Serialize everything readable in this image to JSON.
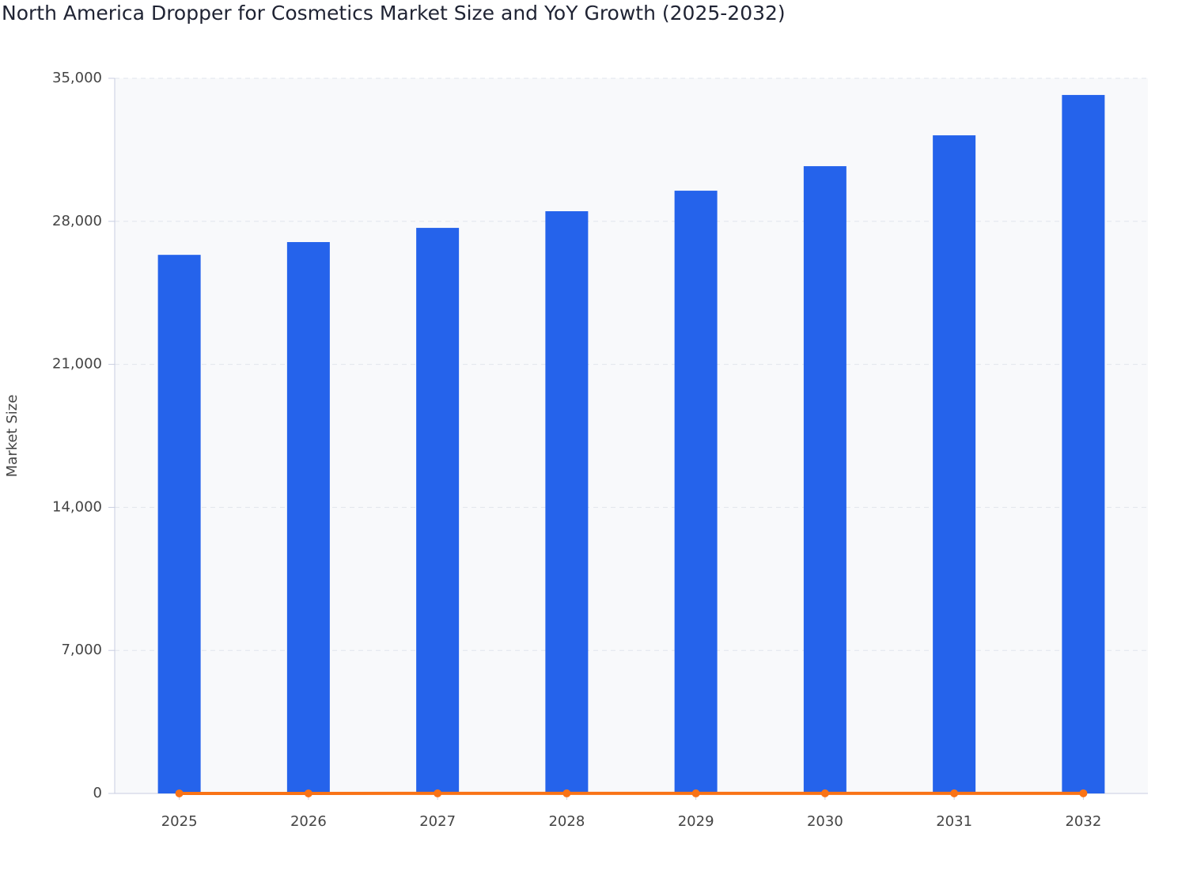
{
  "chart_data": {
    "type": "bar",
    "title": "North America Dropper for Cosmetics Market Size and YoY Growth (2025-2032)",
    "y_label": "Market Size",
    "categories": [
      "2025",
      "2026",
      "2027",
      "2028",
      "2029",
      "2030",
      "2031",
      "2032"
    ],
    "series": [
      {
        "type": "bar",
        "color": "#2563eb",
        "values": [
          26360,
          26985,
          27680,
          28495,
          29500,
          30700,
          32210,
          34185
        ]
      },
      {
        "type": "line",
        "color": "#f97316",
        "values": [
          2.2,
          2.4,
          2.6,
          2.9,
          3.5,
          4.1,
          4.9,
          6.1
        ]
      }
    ],
    "ylim": [
      0,
      35000
    ],
    "yticks": [
      0,
      {
        "value": 7000,
        "label": "7,000"
      },
      {
        "value": 14000,
        "label": "14,000"
      },
      {
        "value": 21000,
        "label": "21,000"
      },
      {
        "value": 28000,
        "label": "28,000"
      },
      {
        "value": 35000,
        "label": "35,000"
      }
    ],
    "grid": true
  }
}
